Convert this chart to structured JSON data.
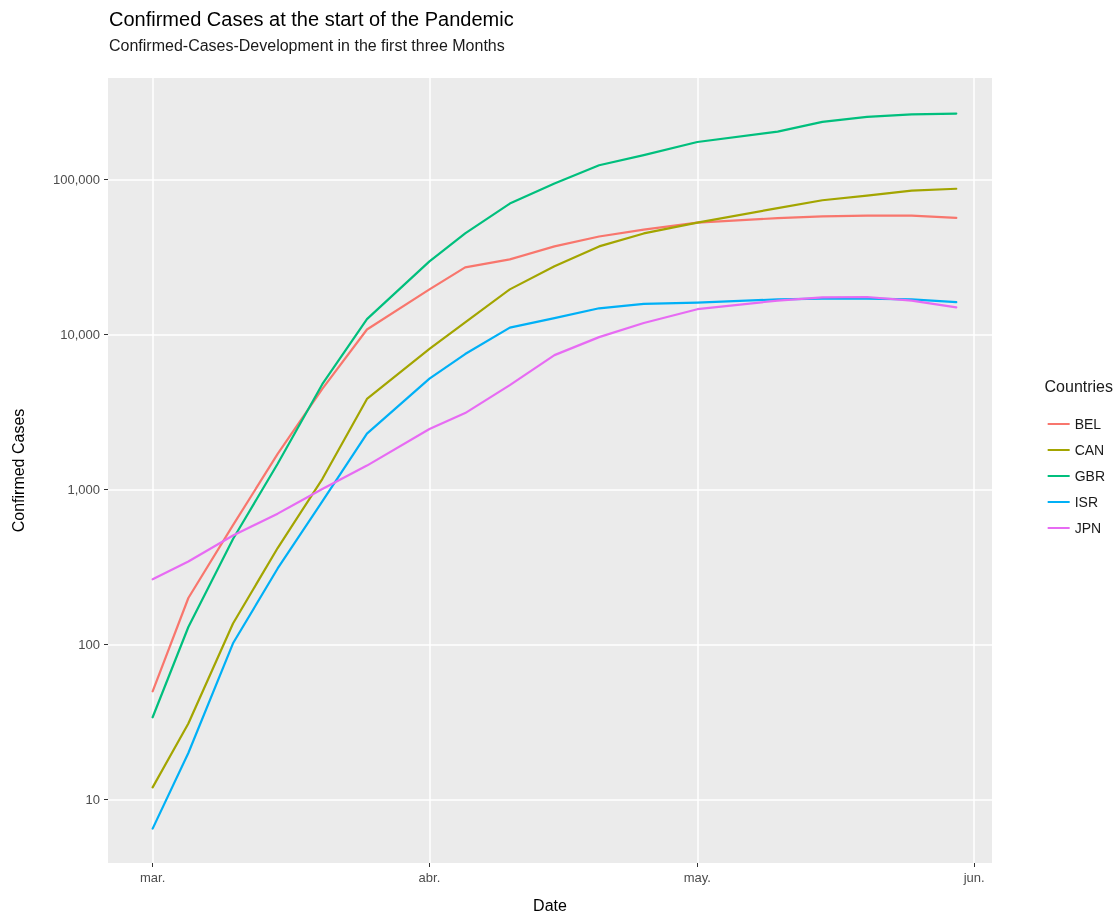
{
  "chart_data": {
    "type": "line",
    "title": "Confirmed Cases at the start of the Pandemic",
    "subtitle": "Confirmed-Cases-Development in the first three Months",
    "xlabel": "Date",
    "ylabel": "Confirmed Cases",
    "legend_title": "Countries",
    "x": [
      "--03-01",
      "--03-05",
      "--03-10",
      "--03-15",
      "--03-20",
      "--03-25",
      "--04-01",
      "--04-05",
      "--04-10",
      "--04-15",
      "--04-20",
      "--04-25",
      "--05-01",
      "--05-10",
      "--05-15",
      "--05-20",
      "--05-25",
      "--05-30"
    ],
    "series": [
      {
        "name": "BEL",
        "color": "#f8766d",
        "values": [
          50,
          200,
          590,
          1700,
          4470,
          10800,
          19600,
          27200,
          30600,
          37100,
          43000,
          47600,
          52800,
          56500,
          58000,
          58600,
          58600,
          56700
        ]
      },
      {
        "name": "CAN",
        "color": "#a3a500",
        "values": [
          12,
          31,
          137,
          420,
          1170,
          3850,
          8100,
          12000,
          19600,
          27600,
          37100,
          45000,
          52800,
          65600,
          73700,
          79000,
          85000,
          87400
        ]
      },
      {
        "name": "GBR",
        "color": "#00bf7d",
        "values": [
          34,
          130,
          480,
          1470,
          4790,
          12600,
          29700,
          45000,
          70100,
          94400,
          124000,
          144000,
          175000,
          204000,
          236000,
          254000,
          264000,
          267000
        ]
      },
      {
        "name": "ISR",
        "color": "#00b0f6",
        "values": [
          6.5,
          20,
          102,
          310,
          840,
          2300,
          5200,
          7500,
          11100,
          12800,
          14800,
          15800,
          16100,
          16900,
          17100,
          17100,
          16900,
          16200
        ]
      },
      {
        "name": "JPN",
        "color": "#e76bf3",
        "values": [
          264,
          344,
          506,
          700,
          1010,
          1430,
          2460,
          3120,
          4730,
          7380,
          9640,
          11900,
          14600,
          16600,
          17400,
          17500,
          16600,
          15000
        ]
      }
    ],
    "log": "y",
    "xlim": [
      "--02-24",
      "--06-03"
    ],
    "ylim": [
      3.9,
      453000
    ],
    "xticks": [
      {
        "value": "--03-01",
        "label": "mar."
      },
      {
        "value": "--04-01",
        "label": "abr."
      },
      {
        "value": "--05-01",
        "label": "may."
      },
      {
        "value": "--06-01",
        "label": "jun."
      }
    ],
    "yticks": [
      {
        "value": 10,
        "label": "10"
      },
      {
        "value": 100,
        "label": "100"
      },
      {
        "value": 1000,
        "label": "1,000"
      },
      {
        "value": 10000,
        "label": "10,000"
      },
      {
        "value": 100000,
        "label": "100,000"
      }
    ],
    "grid": true,
    "legend": "right",
    "marker": "none",
    "line_style": "solid"
  }
}
